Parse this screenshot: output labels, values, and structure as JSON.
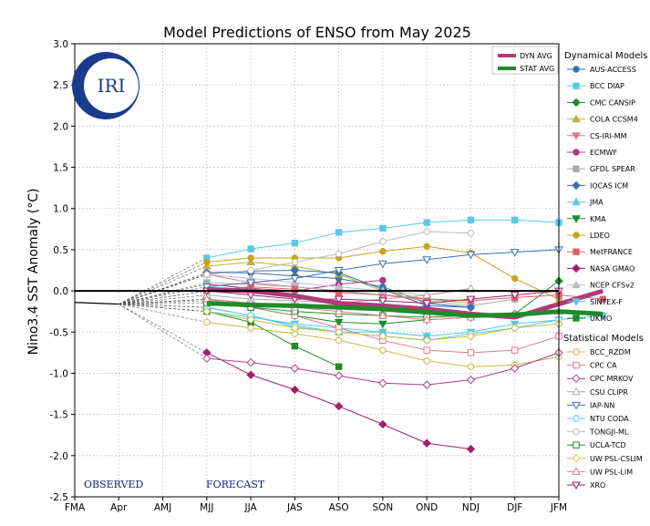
{
  "chart_data": {
    "type": "line",
    "title": "Model Predictions of ENSO from May 2025",
    "ylabel": "Nino3.4 SST Anomaly (°C)",
    "xlabel": "",
    "categories": [
      "FMA",
      "Apr",
      "AMJ",
      "MJJ",
      "JJA",
      "JAS",
      "ASO",
      "SON",
      "OND",
      "NDJ",
      "DJF",
      "JFM"
    ],
    "ylim": [
      -2.5,
      3.0
    ],
    "yticks": [
      "-2.5",
      "-2.0",
      "-1.5",
      "-1.0",
      "-0.5",
      "0.0",
      "0.5",
      "1.0",
      "1.5",
      "2.0",
      "2.5",
      "3.0"
    ],
    "ytick_values": [
      -2.5,
      -2.0,
      -1.5,
      -1.0,
      -0.5,
      0.0,
      0.5,
      1.0,
      1.5,
      2.0,
      2.5,
      3.0
    ],
    "grid": true,
    "observed": {
      "x": [
        0,
        1
      ],
      "values": [
        -0.14,
        -0.16
      ]
    },
    "annotations": {
      "observed": "OBSERVED",
      "forecast": "FORECAST"
    },
    "logo_text": "IRI",
    "legend": {
      "placement": "right",
      "dynamical_title": "Dynamical Models",
      "statistical_title": "Statistical Models",
      "avg_placement": "top-right"
    },
    "averages": [
      {
        "name": "DYN AVG",
        "color": "#b03a78",
        "values": [
          0.02,
          0.0,
          -0.06,
          -0.15,
          -0.18,
          -0.22,
          -0.28,
          -0.32,
          -0.16,
          0.0
        ]
      },
      {
        "name": "STAT AVG",
        "color": "#1e8a2a",
        "values": [
          -0.15,
          -0.17,
          -0.18,
          -0.2,
          -0.22,
          -0.26,
          -0.3,
          -0.29,
          -0.25,
          -0.28
        ]
      }
    ],
    "dynamical_series": [
      {
        "name": "AUS-ACCESS",
        "color": "#3a6fb0",
        "marker": "circle",
        "filled": true,
        "values": [
          0.22,
          0.22,
          0.18,
          0.15,
          0.05,
          -0.15,
          -0.2
        ]
      },
      {
        "name": "BCC DIAP",
        "color": "#5bc8e6",
        "marker": "square",
        "filled": true,
        "values": [
          0.4,
          0.51,
          0.58,
          0.71,
          0.76,
          0.83,
          0.86,
          0.86,
          0.83
        ]
      },
      {
        "name": "CMC CANSIP",
        "color": "#1e8a2a",
        "marker": "diamond",
        "filled": true,
        "values": [
          -0.1,
          -0.15,
          -0.2,
          -0.2,
          -0.22,
          -0.28,
          -0.3,
          -0.28,
          0.12
        ]
      },
      {
        "name": "COLA CCSM4",
        "color": "#b9b43a",
        "marker": "triangle",
        "filled": true,
        "values": [
          0.3,
          0.35,
          0.3,
          0.2,
          0.0,
          -0.1,
          -0.15
        ]
      },
      {
        "name": "CS-IRI-MM",
        "color": "#e07a8a",
        "marker": "triangle-down",
        "filled": true,
        "values": [
          0.2,
          0.1,
          0.05,
          0.0,
          -0.05,
          -0.1,
          -0.12
        ]
      },
      {
        "name": "ECMWF",
        "color": "#b03a78",
        "marker": "circle",
        "filled": true,
        "values": [
          0.08,
          0.03,
          0.0,
          0.08,
          0.13
        ]
      },
      {
        "name": "GFDL SPEAR",
        "color": "#aaaaaa",
        "marker": "square",
        "filled": true,
        "values": [
          0.1,
          0.08,
          0.05,
          0.0,
          -0.05,
          -0.12,
          -0.18,
          -0.1
        ]
      },
      {
        "name": "IOCAS ICM",
        "color": "#3a6fb0",
        "marker": "diamond",
        "filled": true,
        "values": [
          0.22,
          0.24,
          0.25,
          0.22,
          0.02,
          -0.18,
          -0.2
        ]
      },
      {
        "name": "JMA",
        "color": "#5bc8e6",
        "marker": "triangle",
        "filled": true,
        "values": [
          -0.2,
          -0.3,
          -0.44,
          -0.5,
          -0.5,
          -0.55
        ]
      },
      {
        "name": "KMA",
        "color": "#1e8a2a",
        "marker": "triangle-down",
        "filled": true,
        "values": [
          -0.12,
          -0.2,
          -0.3,
          -0.38,
          -0.4,
          -0.35,
          -0.32
        ]
      },
      {
        "name": "LDEO",
        "color": "#c8a420",
        "marker": "circle",
        "filled": true,
        "values": [
          0.35,
          0.4,
          0.4,
          0.4,
          0.48,
          0.54,
          0.46,
          0.15,
          -0.1
        ]
      },
      {
        "name": "MetFRANCE",
        "color": "#e06070",
        "marker": "square",
        "filled": true,
        "values": [
          0.0,
          0.05,
          0.02,
          -0.02,
          -0.05,
          -0.1,
          -0.12,
          -0.08,
          -0.05,
          -0.1
        ]
      },
      {
        "name": "NASA GMAO",
        "color": "#a0206a",
        "marker": "diamond",
        "filled": true,
        "values": [
          -0.75,
          -1.02,
          -1.2,
          -1.4,
          -1.62,
          -1.85,
          -1.92
        ]
      },
      {
        "name": "NCEP CFSv2",
        "color": "#bbbbcc",
        "marker": "triangle",
        "filled": true,
        "values": [
          0.2,
          0.15,
          0.1,
          0.05,
          0.0,
          -0.05,
          0.02
        ]
      },
      {
        "name": "SINTEX-F",
        "color": "#5bc8e6",
        "marker": "triangle-down",
        "filled": true,
        "values": [
          -0.25,
          -0.32,
          -0.4,
          -0.45,
          -0.5,
          -0.55,
          -0.5,
          -0.4,
          -0.35,
          -0.3
        ]
      },
      {
        "name": "UKMO",
        "color": "#1e8a2a",
        "marker": "square",
        "filled": true,
        "values": [
          -0.25,
          -0.38,
          -0.67,
          -0.92
        ]
      }
    ],
    "statistical_series": [
      {
        "name": "BCC_RZDM",
        "color": "#c8b840",
        "marker": "circle",
        "filled": false,
        "values": [
          -0.38,
          -0.45,
          -0.52,
          -0.6,
          -0.72,
          -0.85,
          -0.92,
          -0.9,
          -0.8
        ]
      },
      {
        "name": "CPC CA",
        "color": "#e07a8a",
        "marker": "square",
        "filled": false,
        "values": [
          -0.1,
          -0.2,
          -0.3,
          -0.45,
          -0.6,
          -0.72,
          -0.75,
          -0.72,
          -0.55
        ]
      },
      {
        "name": "CPC MRKOV",
        "color": "#b03a88",
        "marker": "diamond",
        "filled": false,
        "values": [
          -0.82,
          -0.87,
          -0.94,
          -1.03,
          -1.12,
          -1.14,
          -1.08,
          -0.94,
          -0.75
        ]
      },
      {
        "name": "CSU CLIPR",
        "color": "#aaaaaa",
        "marker": "triangle",
        "filled": false,
        "values": [
          -0.05,
          -0.1,
          -0.12,
          -0.15,
          -0.1,
          -0.05,
          0.03
        ]
      },
      {
        "name": "IAP-NN",
        "color": "#3a6fb0",
        "marker": "triangle-down",
        "filled": false,
        "values": [
          0.05,
          0.1,
          0.15,
          0.25,
          0.33,
          0.38,
          0.44,
          0.47,
          0.5
        ]
      },
      {
        "name": "NTU CODA",
        "color": "#5bc8e6",
        "marker": "circle",
        "filled": false,
        "values": [
          -0.2,
          -0.3,
          -0.42,
          -0.5,
          -0.55,
          -0.6,
          -0.52,
          -0.45,
          -0.35
        ]
      },
      {
        "name": "TONGJI-ML",
        "color": "#bbbbbb",
        "marker": "circle",
        "filled": false,
        "values": [
          0.2,
          0.25,
          0.35,
          0.45,
          0.6,
          0.72,
          0.7
        ]
      },
      {
        "name": "UCLA-TCD",
        "color": "#1e8a2a",
        "marker": "square",
        "filled": false,
        "values": [
          -0.15,
          -0.2,
          -0.25,
          -0.28,
          -0.3,
          -0.32,
          -0.3,
          -0.3
        ]
      },
      {
        "name": "UW PSL-CSLIM",
        "color": "#c8c040",
        "marker": "diamond",
        "filled": false,
        "values": [
          -0.25,
          -0.35,
          -0.45,
          -0.5,
          -0.55,
          -0.6,
          -0.55,
          -0.45,
          -0.4
        ]
      },
      {
        "name": "UW PSL-LIM",
        "color": "#e07a8a",
        "marker": "triangle",
        "filled": false,
        "values": [
          -0.1,
          -0.15,
          -0.2,
          -0.25,
          -0.3,
          -0.35,
          -0.32,
          -0.28,
          -0.25
        ]
      },
      {
        "name": "XRO",
        "color": "#a0206a",
        "marker": "triangle-down",
        "filled": false,
        "values": [
          0.0,
          -0.05,
          -0.1,
          -0.1,
          -0.12,
          -0.15,
          -0.1,
          -0.05,
          0.0
        ]
      }
    ]
  }
}
